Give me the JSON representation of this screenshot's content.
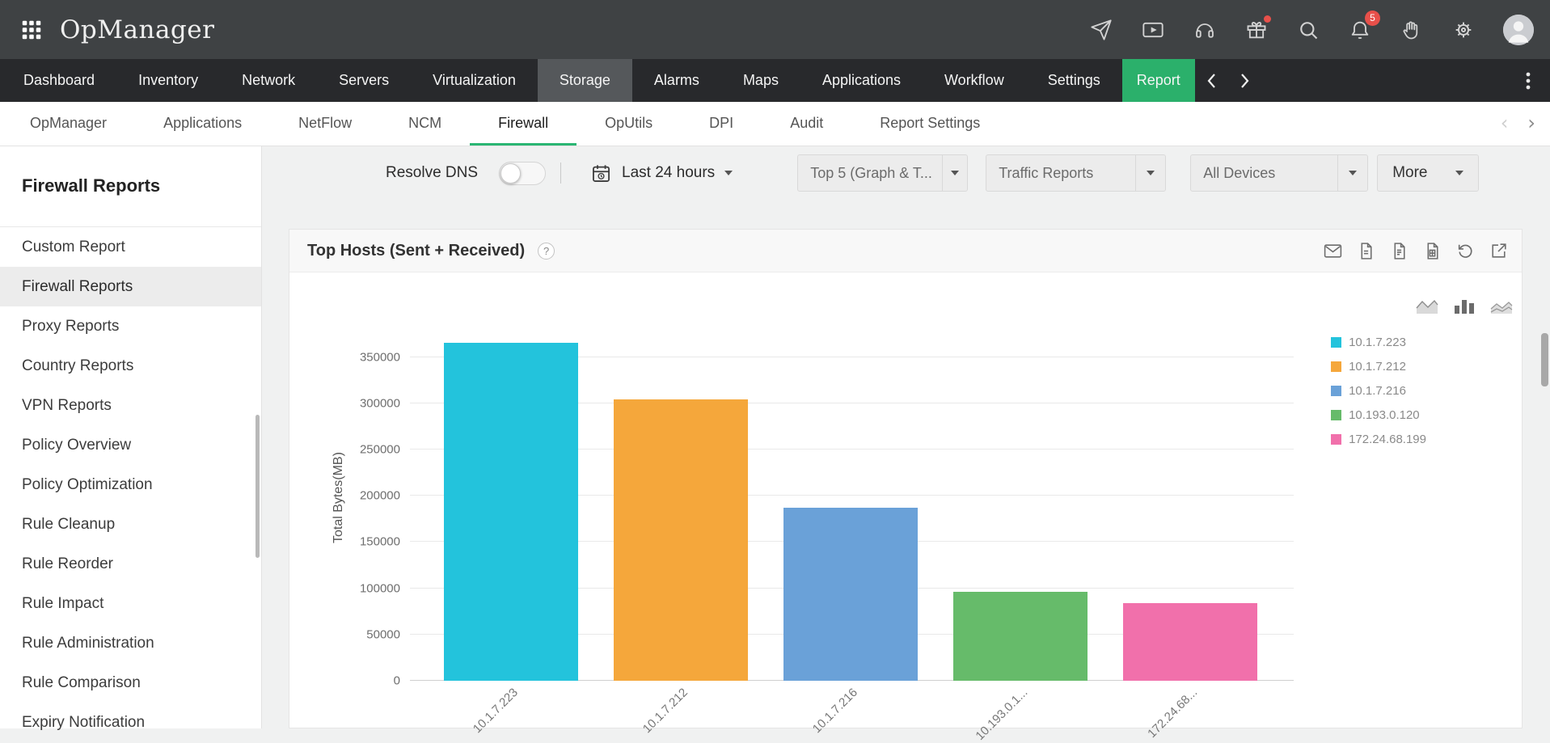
{
  "topbar": {
    "app_title": "OpManager",
    "notification_count": "5",
    "icons": [
      "apps-grid",
      "launch",
      "video",
      "headset",
      "gift",
      "search",
      "notifications",
      "hand",
      "settings",
      "avatar"
    ]
  },
  "nav": {
    "items": [
      {
        "label": "Dashboard"
      },
      {
        "label": "Inventory"
      },
      {
        "label": "Network"
      },
      {
        "label": "Servers"
      },
      {
        "label": "Virtualization"
      },
      {
        "label": "Storage",
        "active": true
      },
      {
        "label": "Alarms"
      },
      {
        "label": "Maps"
      },
      {
        "label": "Applications"
      },
      {
        "label": "Workflow"
      },
      {
        "label": "Settings"
      },
      {
        "label": "Report",
        "highlight": true
      }
    ]
  },
  "subnav": {
    "items": [
      {
        "label": "OpManager"
      },
      {
        "label": "Applications"
      },
      {
        "label": "NetFlow"
      },
      {
        "label": "NCM"
      },
      {
        "label": "Firewall",
        "active": true
      },
      {
        "label": "OpUtils"
      },
      {
        "label": "DPI"
      },
      {
        "label": "Audit"
      },
      {
        "label": "Report Settings"
      }
    ]
  },
  "sidebar": {
    "title": "Firewall Reports",
    "selected": "Firewall Reports",
    "items": [
      "Custom Report",
      "Firewall Reports",
      "Proxy Reports",
      "Country Reports",
      "VPN Reports",
      "Policy Overview",
      "Policy Optimization",
      "Rule Cleanup",
      "Rule Reorder",
      "Rule Impact",
      "Rule Administration",
      "Rule Comparison",
      "Expiry Notification"
    ]
  },
  "toolbar": {
    "resolve_dns_label": "Resolve DNS",
    "resolve_dns_state": "off",
    "time_range_value": "Last 24 hours",
    "dropdowns": [
      {
        "name": "top-n",
        "value": "Top 5 (Graph & T..."
      },
      {
        "name": "report-type",
        "value": "Traffic Reports"
      },
      {
        "name": "device-scope",
        "value": "All Devices"
      }
    ],
    "more_label": "More"
  },
  "panel": {
    "title": "Top Hosts (Sent + Received)",
    "help": "?",
    "action_icons": [
      "email",
      "pdf",
      "csv",
      "excel",
      "history",
      "export"
    ]
  },
  "chart_data": {
    "type": "bar",
    "title": "Top Hosts (Sent + Received)",
    "xlabel": "",
    "ylabel": "Total Bytes(MB)",
    "ylim": [
      0,
      350000
    ],
    "plot_max": 396000,
    "yticks": [
      0,
      50000,
      100000,
      150000,
      200000,
      250000,
      300000,
      350000
    ],
    "categories": [
      "10.1.7.223",
      "10.1.7.212",
      "10.1.7.216",
      "10.193.0.120",
      "172.24.68.199"
    ],
    "xtick_labels": [
      "10.1.7.223",
      "10.1.7.212",
      "10.1.7.216",
      "10.193.0.1...",
      "172.24.68..."
    ],
    "values": [
      365000,
      304000,
      187000,
      96000,
      84000
    ],
    "colors": [
      "#23c3dc",
      "#f5a73b",
      "#6aa1d8",
      "#66bb6a",
      "#f170ab"
    ],
    "legend": [
      "10.1.7.223",
      "10.1.7.212",
      "10.1.7.216",
      "10.193.0.120",
      "172.24.68.199"
    ],
    "legend_position": "right",
    "grid": true
  },
  "colors": {
    "accent_green": "#2bb673",
    "badge_red": "#e8504a",
    "topbar_bg": "#3f4244",
    "nav_bg": "#28292c"
  }
}
